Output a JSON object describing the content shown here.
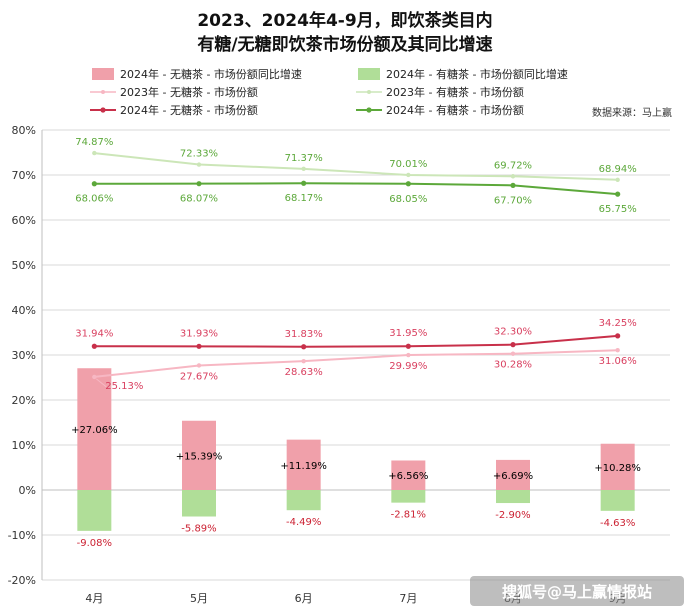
{
  "chart_data": {
    "type": "bar+line",
    "title_lines": [
      "2023、2024年4-9月，即饮茶类目内",
      "有糖/无糖即饮茶市场份额及其同比增速"
    ],
    "source": "数据来源：马上赢",
    "watermark": "搜狐号@马上赢情报站",
    "categories": [
      "4月",
      "5月",
      "6月",
      "7月",
      "8月",
      "9月"
    ],
    "ylim": [
      -20,
      80
    ],
    "y_ticks": [
      -20,
      -10,
      0,
      10,
      20,
      30,
      40,
      50,
      60,
      70,
      80
    ],
    "y_tick_labels": [
      "-20%",
      "-10%",
      "0%",
      "10%",
      "20%",
      "30%",
      "40%",
      "50%",
      "60%",
      "70%",
      "80%"
    ],
    "grid": true,
    "legend_position": "top",
    "bar_series": [
      {
        "name": "2024年 - 无糖茶 - 市场份额同比增速",
        "color": "#f0a0aa",
        "label_color": "#000000",
        "values": [
          27.06,
          15.39,
          11.19,
          6.56,
          6.69,
          10.28
        ],
        "labels": [
          "+27.06%",
          "+15.39%",
          "+11.19%",
          "+6.56%",
          "+6.69%",
          "+10.28%"
        ]
      },
      {
        "name": "2024年 - 有糖茶 - 市场份额同比增速",
        "color": "#b0de98",
        "label_color": "#cc2233",
        "values": [
          -9.08,
          -5.89,
          -4.49,
          -2.81,
          -2.9,
          -4.63
        ],
        "labels": [
          "-9.08%",
          "-5.89%",
          "-4.49%",
          "-2.81%",
          "-2.90%",
          "-4.63%"
        ]
      }
    ],
    "line_series": [
      {
        "name": "2023年 - 无糖茶 - 市场份额",
        "color": "#f7b7c3",
        "label_color": "#d94060",
        "values": [
          25.13,
          27.67,
          28.63,
          29.99,
          30.28,
          31.06
        ],
        "labels": [
          "25.13%",
          "27.67%",
          "28.63%",
          "29.99%",
          "30.28%",
          "31.06%"
        ]
      },
      {
        "name": "2023年 - 有糖茶 - 市场份额",
        "color": "#cce6b8",
        "label_color": "#5ca83a",
        "values": [
          74.87,
          72.33,
          71.37,
          70.01,
          69.72,
          68.94
        ],
        "labels": [
          "74.87%",
          "72.33%",
          "71.37%",
          "70.01%",
          "69.72%",
          "68.94%"
        ]
      },
      {
        "name": "2024年 - 无糖茶 - 市场份额",
        "color": "#c8304a",
        "label_color": "#d94060",
        "values": [
          31.94,
          31.93,
          31.83,
          31.95,
          32.3,
          34.25
        ],
        "labels": [
          "31.94%",
          "31.93%",
          "31.83%",
          "31.95%",
          "32.30%",
          "34.25%"
        ]
      },
      {
        "name": "2024年 - 有糖茶 - 市场份额",
        "color": "#5ca83a",
        "label_color": "#5ca83a",
        "values": [
          68.06,
          68.07,
          68.17,
          68.05,
          67.7,
          65.75
        ],
        "labels": [
          "68.06%",
          "68.07%",
          "68.17%",
          "68.05%",
          "67.70%",
          "65.75%"
        ]
      }
    ]
  }
}
